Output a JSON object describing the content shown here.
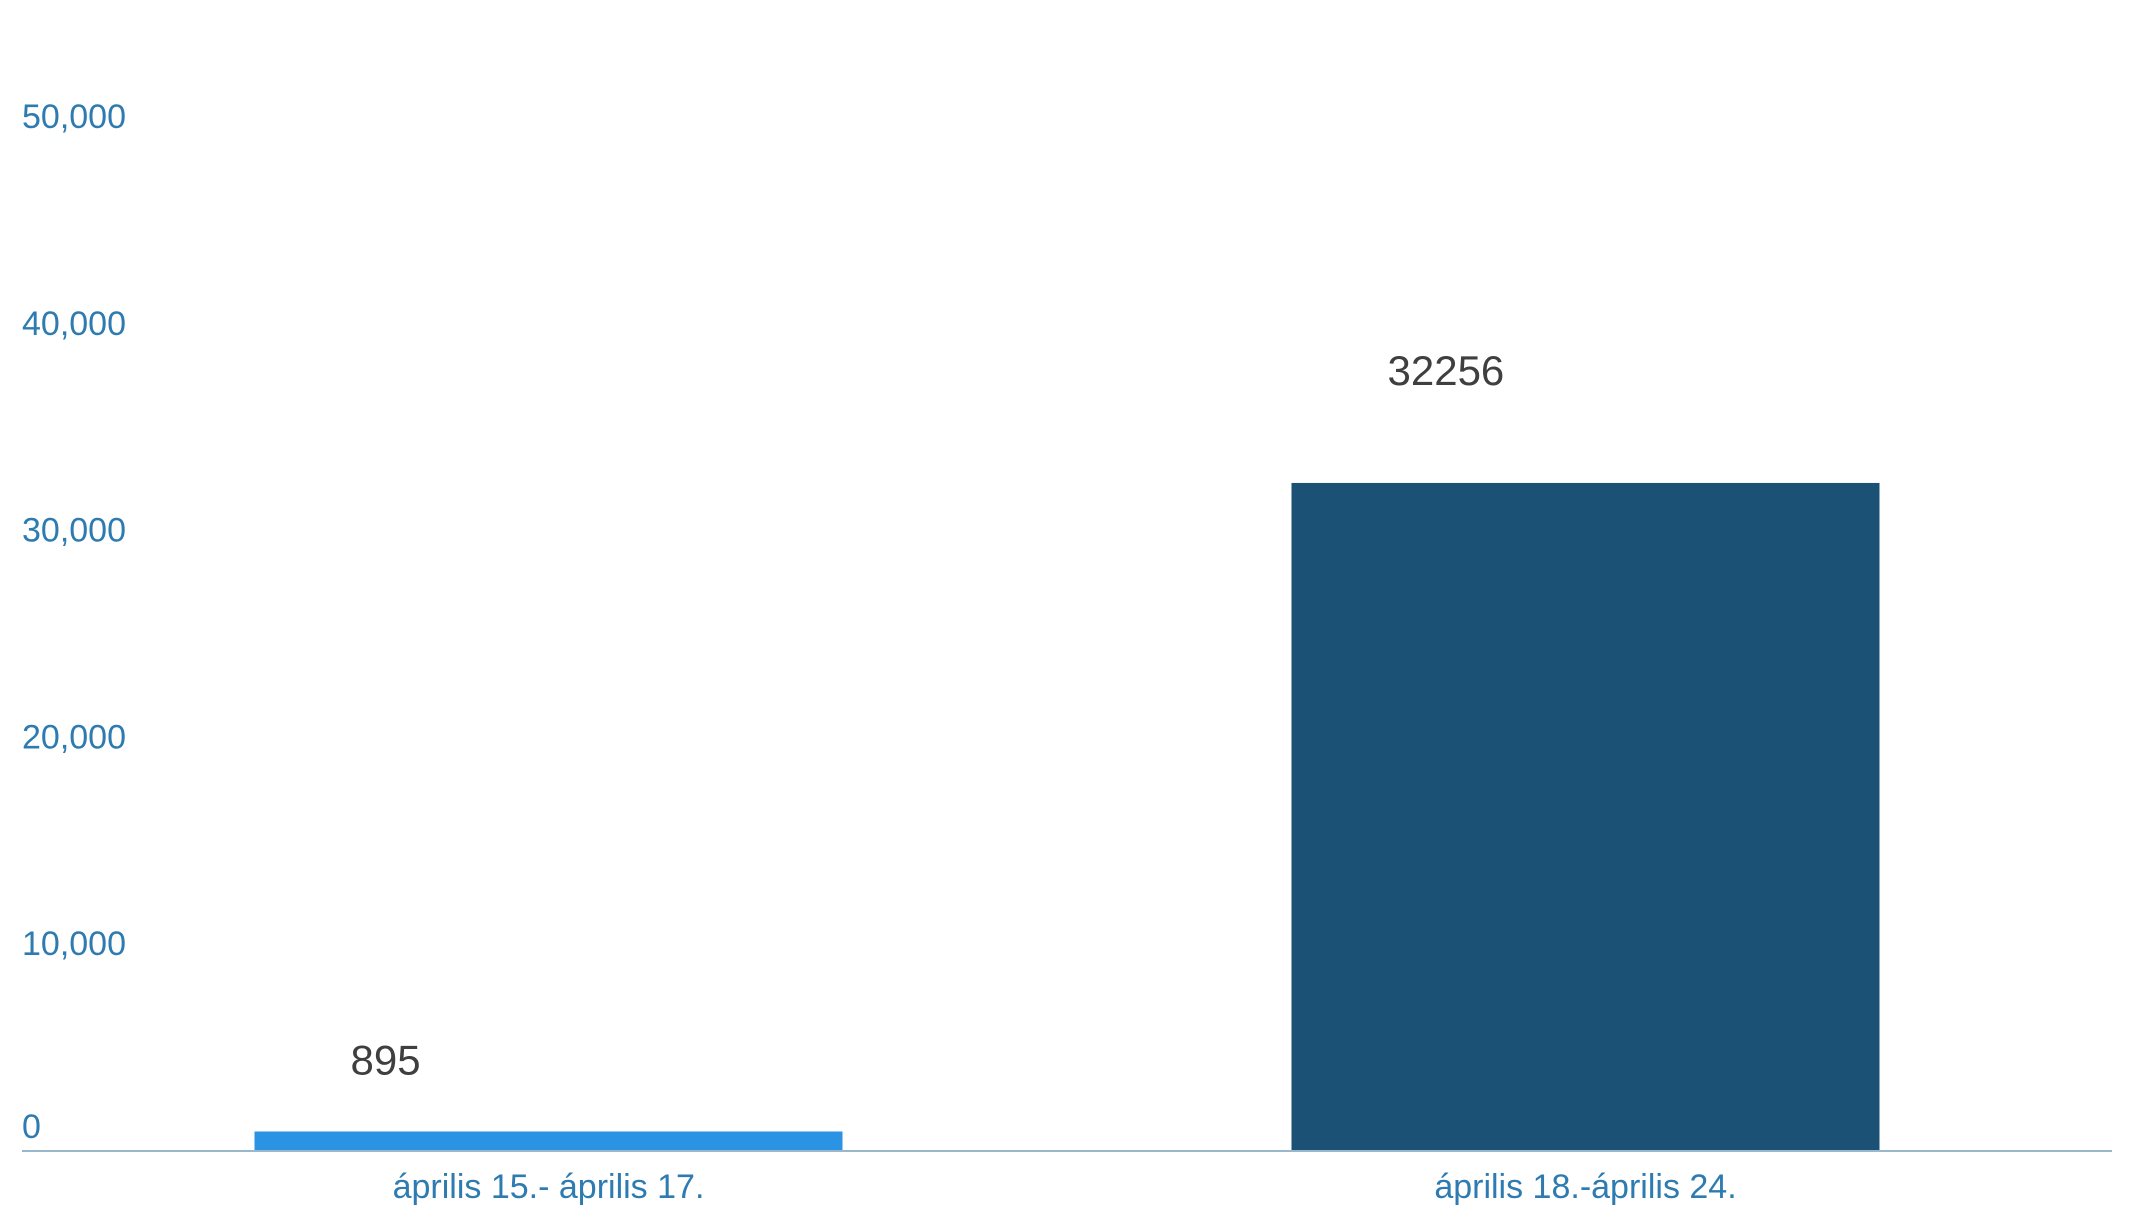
{
  "chart_data": {
    "type": "bar",
    "title": "",
    "xlabel": "",
    "ylabel": "",
    "categories": [
      "április 15.- április 17.",
      "április 18.-április 24."
    ],
    "values": [
      895,
      32256
    ],
    "data_labels": [
      "895",
      "32256"
    ],
    "bar_colors": [
      "#2B93E3",
      "#1A5174"
    ],
    "ylim": [
      0,
      50000
    ],
    "y_ticks": [
      0,
      10000,
      20000,
      30000,
      40000,
      50000
    ],
    "y_tick_labels": [
      "0",
      "10,000",
      "20,000",
      "30,000",
      "40,000",
      "50,000"
    ],
    "grid": false,
    "legend": "none",
    "colors": {
      "axis_text": "#2D7BB0",
      "axis_line": "#9AB8CC",
      "data_label": "#3f3f3f"
    }
  }
}
